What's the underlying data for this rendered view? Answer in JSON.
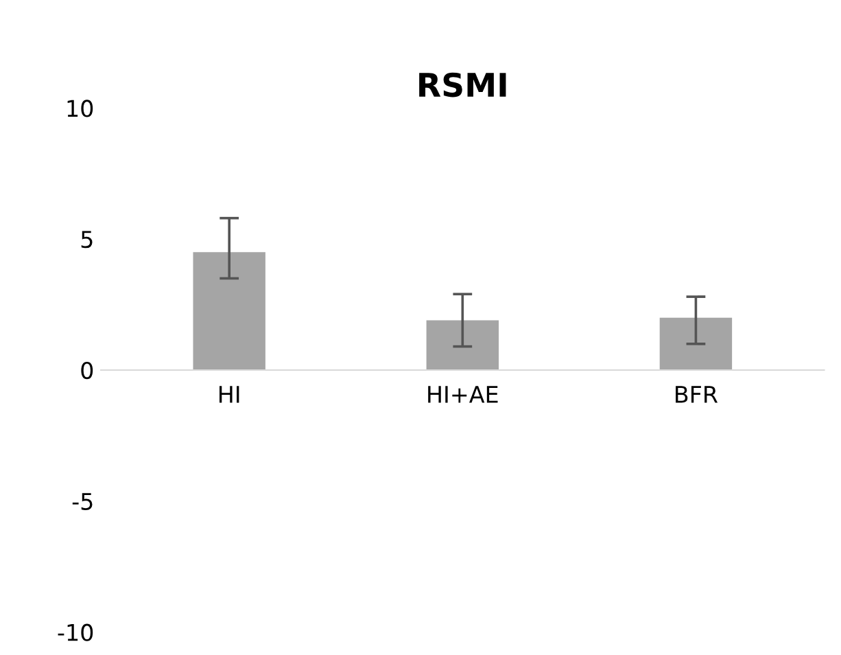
{
  "chart_data": {
    "type": "bar",
    "title": "RSMI",
    "categories": [
      "HI",
      "HI+AE",
      "BFR"
    ],
    "values": [
      4.5,
      1.9,
      2.0
    ],
    "errors": [
      [
        3.5,
        5.8
      ],
      [
        0.9,
        2.9
      ],
      [
        1.0,
        2.8
      ]
    ],
    "color": "#a5a5a5",
    "ylim": [
      -10,
      10
    ],
    "yticks": [
      -10,
      -5,
      0,
      5,
      10
    ],
    "grid": false,
    "legend": false
  }
}
